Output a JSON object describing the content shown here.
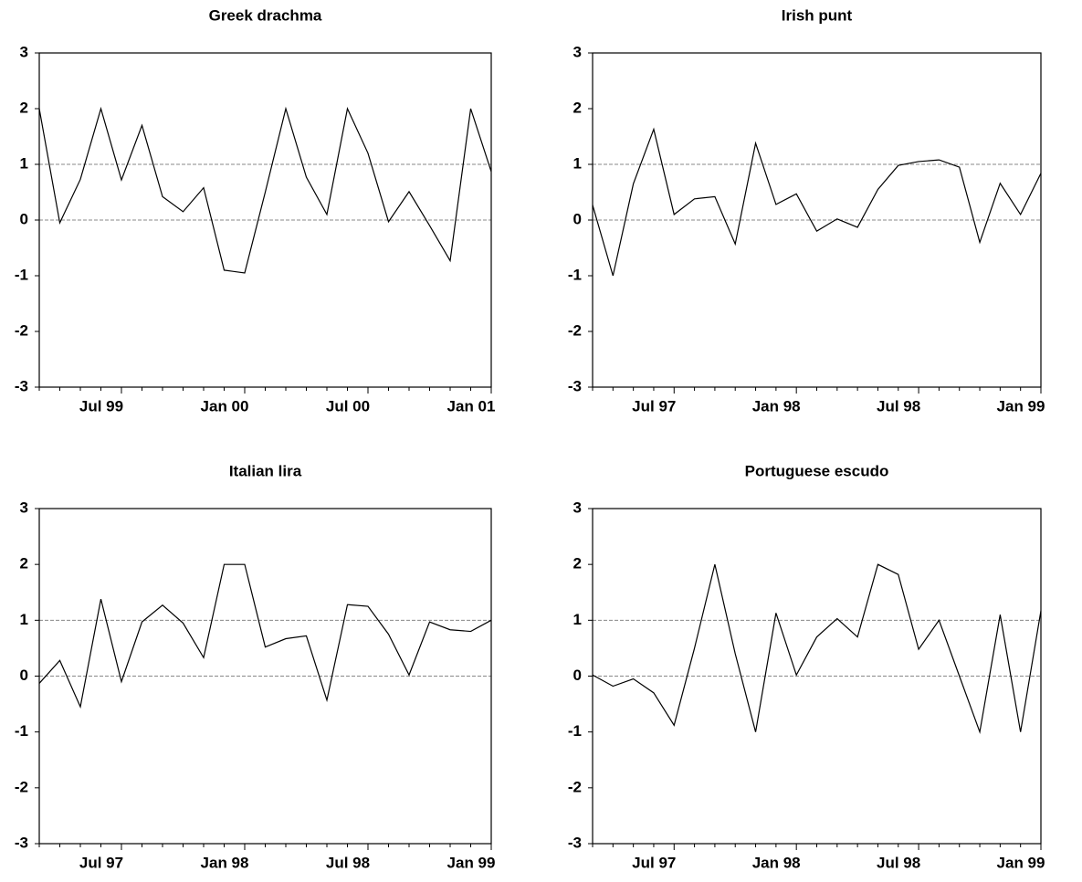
{
  "chart_data": [
    {
      "type": "line",
      "title": "Greek drachma",
      "categories": [
        null,
        null,
        null,
        null,
        "Jul 99",
        null,
        null,
        null,
        null,
        null,
        "Jan 00",
        null,
        null,
        null,
        null,
        null,
        "Jul 00",
        null,
        null,
        null,
        null,
        null,
        "Jan 01"
      ],
      "values": [
        2.0,
        -0.05,
        0.73,
        2.0,
        0.72,
        1.7,
        0.42,
        0.15,
        0.58,
        -0.9,
        -0.95,
        0.5,
        2.0,
        0.77,
        0.1,
        2.0,
        1.2,
        -0.03,
        0.51,
        -0.1,
        -0.73,
        2.0,
        0.87
      ],
      "color": "#000000",
      "ylim": [
        -3,
        3
      ],
      "yticks": [
        -3,
        -2,
        -1,
        0,
        1,
        2,
        3
      ],
      "hlines": [
        0,
        1
      ]
    },
    {
      "type": "line",
      "title": "Irish punt",
      "categories": [
        null,
        null,
        null,
        null,
        "Jul 97",
        null,
        null,
        null,
        null,
        null,
        "Jan 98",
        null,
        null,
        null,
        null,
        null,
        "Jul 98",
        null,
        null,
        null,
        null,
        null,
        "Jan 99"
      ],
      "values": [
        0.27,
        -1.0,
        0.65,
        1.63,
        0.1,
        0.38,
        0.42,
        -0.43,
        1.38,
        0.28,
        0.47,
        -0.2,
        0.02,
        -0.13,
        0.55,
        0.98,
        1.05,
        1.08,
        0.95,
        -0.4,
        0.66,
        0.1,
        0.84
      ],
      "color": "#000000",
      "ylim": [
        -3,
        3
      ],
      "yticks": [
        -3,
        -2,
        -1,
        0,
        1,
        2,
        3
      ],
      "hlines": [
        0,
        1
      ]
    },
    {
      "type": "line",
      "title": "Italian lira",
      "categories": [
        null,
        null,
        null,
        null,
        "Jul 97",
        null,
        null,
        null,
        null,
        null,
        "Jan 98",
        null,
        null,
        null,
        null,
        null,
        "Jul 98",
        null,
        null,
        null,
        null,
        null,
        "Jan 99"
      ],
      "values": [
        -0.13,
        0.28,
        -0.55,
        1.38,
        -0.1,
        0.97,
        1.27,
        0.95,
        0.33,
        2.0,
        2.0,
        0.52,
        0.67,
        0.72,
        -0.43,
        1.28,
        1.25,
        0.75,
        0.02,
        0.97,
        0.83,
        0.8,
        1.0
      ],
      "color": "#000000",
      "ylim": [
        -3,
        3
      ],
      "yticks": [
        -3,
        -2,
        -1,
        0,
        1,
        2,
        3
      ],
      "hlines": [
        0,
        1
      ]
    },
    {
      "type": "line",
      "title": "Portuguese escudo",
      "categories": [
        null,
        null,
        null,
        null,
        "Jul 97",
        null,
        null,
        null,
        null,
        null,
        "Jan 98",
        null,
        null,
        null,
        null,
        null,
        "Jul 98",
        null,
        null,
        null,
        null,
        null,
        "Jan 99"
      ],
      "values": [
        0.02,
        -0.18,
        -0.05,
        -0.3,
        -0.88,
        0.5,
        2.0,
        0.4,
        -1.0,
        1.13,
        0.02,
        0.7,
        1.03,
        0.7,
        2.0,
        1.82,
        0.48,
        1.0,
        0.0,
        -1.0,
        1.1,
        -1.0,
        1.17
      ],
      "color": "#000000",
      "ylim": [
        -3,
        3
      ],
      "yticks": [
        -3,
        -2,
        -1,
        0,
        1,
        2,
        3
      ],
      "hlines": [
        0,
        1
      ]
    }
  ]
}
